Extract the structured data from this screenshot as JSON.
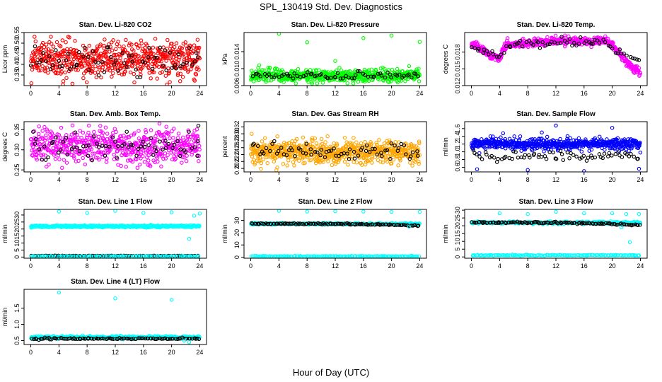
{
  "figure": {
    "title": "SPL_130419  Std. Dev. Diagnostics",
    "xlabel": "Hour of Day (UTC)"
  },
  "chart_data": [
    {
      "type": "scatter",
      "title": "Stan. Dev. Li-820 CO2",
      "xlabel": "",
      "ylabel": "Licor ppm",
      "xlim": [
        -0.96,
        24.96
      ],
      "ylim": [
        0.3,
        0.55
      ],
      "xticks": [
        0,
        4,
        8,
        12,
        16,
        20,
        24
      ],
      "yticks": [
        0.35,
        0.4,
        0.45,
        0.5,
        0.55
      ],
      "ytick_labels": [
        "0.35",
        "0.40",
        "0.45",
        "0.50",
        "0.55"
      ],
      "series": [
        {
          "color": "#ff0000",
          "kind": "noise",
          "n": 600,
          "x_range": [
            0,
            24
          ],
          "y_center": 0.425,
          "y_spread": 0.045,
          "y_min": 0.305,
          "y_max": 0.53
        },
        {
          "color": "#000000",
          "kind": "noise",
          "n": 70,
          "x_range": [
            0,
            24
          ],
          "y_center": 0.42,
          "y_spread": 0.04,
          "y_min": 0.34,
          "y_max": 0.5
        }
      ]
    },
    {
      "type": "scatter",
      "title": "Stan. Dev. Li-820 Pressure",
      "xlabel": "",
      "ylabel": "kPa",
      "xlim": [
        -0.96,
        24.96
      ],
      "ylim": [
        0.006,
        0.0185
      ],
      "xticks": [
        0,
        4,
        8,
        12,
        16,
        20,
        24
      ],
      "yticks": [
        0.006,
        0.01,
        0.014
      ],
      "ytick_labels": [
        "0.006",
        "0.010",
        "0.014"
      ],
      "series": [
        {
          "color": "#00ff00",
          "kind": "noise",
          "n": 600,
          "x_range": [
            0,
            24
          ],
          "y_center": 0.0083,
          "y_spread": 0.0007,
          "y_min": 0.0065,
          "y_max": 0.0102
        },
        {
          "color": "#000000",
          "kind": "noise",
          "n": 70,
          "x_range": [
            0,
            24
          ],
          "y_center": 0.0084,
          "y_spread": 0.0005,
          "y_min": 0.0072,
          "y_max": 0.0095
        },
        {
          "color": "#00ff00",
          "kind": "points",
          "x": [
            4,
            8,
            12,
            16,
            20,
            24,
            1.2,
            22.5
          ],
          "y": [
            0.0182,
            0.0162,
            0.0118,
            0.0172,
            0.0178,
            0.0163,
            0.0108,
            0.0106
          ]
        }
      ]
    },
    {
      "type": "scatter",
      "title": "Stan. Dev. Li-820 Temp.",
      "xlabel": "",
      "ylabel": "degrees C",
      "xlim": [
        -0.96,
        24.96
      ],
      "ylim": [
        0.012,
        0.0215
      ],
      "xticks": [
        0,
        4,
        8,
        12,
        16,
        20,
        24
      ],
      "yticks": [
        0.012,
        0.015,
        0.018
      ],
      "ytick_labels": [
        "0.012",
        "0.015",
        "0.018"
      ],
      "series": [
        {
          "color": "#ff00ff",
          "kind": "trend",
          "n": 600,
          "x_range": [
            0,
            24
          ],
          "y_spread": 0.00035,
          "knots_x": [
            0,
            1,
            2,
            3,
            4,
            4.5,
            5,
            8,
            12,
            16,
            19,
            20,
            21,
            22,
            23,
            24
          ],
          "knots_y": [
            0.0193,
            0.0188,
            0.018,
            0.0173,
            0.0167,
            0.0185,
            0.0192,
            0.0196,
            0.02,
            0.0199,
            0.0201,
            0.0193,
            0.0178,
            0.0162,
            0.015,
            0.0145
          ]
        },
        {
          "color": "#000000",
          "kind": "trend",
          "n": 70,
          "x_range": [
            0,
            24
          ],
          "y_spread": 0.0004,
          "knots_x": [
            0,
            4,
            5,
            12,
            19,
            21,
            24
          ],
          "knots_y": [
            0.019,
            0.017,
            0.0192,
            0.02,
            0.0198,
            0.0178,
            0.0165
          ]
        }
      ]
    },
    {
      "type": "scatter",
      "title": "Stan. Dev. Amb. Box Temp.",
      "xlabel": "",
      "ylabel": "degrees C",
      "xlim": [
        -0.96,
        24.96
      ],
      "ylim": [
        0.245,
        0.37
      ],
      "xticks": [
        0,
        4,
        8,
        12,
        16,
        20,
        24
      ],
      "yticks": [
        0.25,
        0.3,
        0.35
      ],
      "ytick_labels": [
        "0.25",
        "0.30",
        "0.35"
      ],
      "series": [
        {
          "color": "#ff00ff",
          "kind": "noise",
          "n": 560,
          "x_range": [
            0,
            24
          ],
          "y_center": 0.31,
          "y_spread": 0.022,
          "y_min": 0.255,
          "y_max": 0.365
        },
        {
          "color": "#000000",
          "kind": "noise",
          "n": 70,
          "x_range": [
            0,
            24
          ],
          "y_center": 0.305,
          "y_spread": 0.017,
          "y_min": 0.27,
          "y_max": 0.345
        },
        {
          "color": "#000000",
          "kind": "points",
          "x": [
            23.8
          ],
          "y": [
            0.36
          ]
        }
      ]
    },
    {
      "type": "scatter",
      "title": "Stan. Dev. Gas Stream RH",
      "xlabel": "",
      "ylabel": "percent",
      "xlim": [
        -0.96,
        24.96
      ],
      "ylim": [
        0.19,
        0.335
      ],
      "xticks": [
        0,
        4,
        8,
        12,
        16,
        20,
        24
      ],
      "yticks": [
        0.2,
        0.22,
        0.24,
        0.26,
        0.28,
        0.3,
        0.32
      ],
      "ytick_labels": [
        "0.20",
        "0.22",
        "0.24",
        "0.26",
        "0.28",
        "0.30",
        "0.32"
      ],
      "series": [
        {
          "color": "#ffa500",
          "kind": "noise",
          "n": 650,
          "x_range": [
            0,
            24
          ],
          "y_center": 0.248,
          "y_spread": 0.017,
          "y_min": 0.195,
          "y_max": 0.33
        },
        {
          "color": "#000000",
          "kind": "noise",
          "n": 70,
          "x_range": [
            0,
            24
          ],
          "y_center": 0.247,
          "y_spread": 0.013,
          "y_min": 0.215,
          "y_max": 0.3
        }
      ]
    },
    {
      "type": "scatter",
      "title": "Stan. Dev. Sample Flow",
      "xlabel": "",
      "ylabel": "ml/min",
      "xlim": [
        -0.96,
        24.96
      ],
      "ylim": [
        0.48,
        1.78
      ],
      "xticks": [
        0,
        4,
        8,
        12,
        16,
        20,
        24
      ],
      "yticks": [
        0.6,
        0.8,
        1.0,
        1.2,
        1.4,
        1.6
      ],
      "ytick_labels": [
        "0.6",
        "0.8",
        "1.0",
        "1.2",
        "1.4",
        "1.6"
      ],
      "series": [
        {
          "color": "#0000ff",
          "kind": "noise",
          "n": 600,
          "x_range": [
            0,
            24
          ],
          "y_center": 1.2,
          "y_spread": 0.07,
          "y_min": 0.95,
          "y_max": 1.6
        },
        {
          "color": "#000000",
          "kind": "noise",
          "n": 70,
          "x_range": [
            0,
            24
          ],
          "y_center": 0.88,
          "y_spread": 0.07,
          "y_min": 0.65,
          "y_max": 1.05
        },
        {
          "color": "#0000ff",
          "kind": "points",
          "x": [
            0.8,
            8,
            16,
            23.8,
            12,
            20,
            4.5,
            10
          ],
          "y": [
            0.55,
            0.53,
            0.5,
            0.56,
            1.68,
            1.62,
            1.48,
            1.5
          ]
        }
      ]
    },
    {
      "type": "scatter",
      "title": "Stan. Dev. Line 1 Flow",
      "xlabel": "",
      "ylabel": "ml/min",
      "xlim": [
        -0.96,
        24.96
      ],
      "ylim": [
        -0.8,
        34
      ],
      "xticks": [
        0,
        4,
        8,
        12,
        16,
        20,
        24
      ],
      "yticks": [
        0,
        5,
        10,
        15,
        20,
        25,
        30
      ],
      "ytick_labels": [
        "0",
        "5",
        "10",
        "15",
        "20",
        "25",
        "30"
      ],
      "series": [
        {
          "color": "#00ffff",
          "kind": "noise",
          "n": 420,
          "x_range": [
            0,
            24
          ],
          "y_center": 21.9,
          "y_spread": 0.35,
          "y_min": 20.8,
          "y_max": 23
        },
        {
          "color": "#000000",
          "kind": "noise",
          "n": 90,
          "x_range": [
            0,
            24
          ],
          "y_center": 0.9,
          "y_spread": 0.08,
          "y_min": 0.6,
          "y_max": 1.2
        },
        {
          "color": "#00ffff",
          "kind": "noise",
          "n": 90,
          "x_range": [
            0,
            24
          ],
          "y_center": 0.6,
          "y_spread": 0.1,
          "y_min": 0.3,
          "y_max": 0.9
        },
        {
          "color": "#00ffff",
          "kind": "points",
          "x": [
            4,
            8,
            12,
            16,
            20,
            24,
            22.5,
            23.2
          ],
          "y": [
            32.5,
            31.5,
            33,
            31.5,
            32,
            31,
            13,
            29.5
          ]
        }
      ]
    },
    {
      "type": "scatter",
      "title": "Stan. Dev. Line 2 Flow",
      "xlabel": "",
      "ylabel": "ml/min",
      "xlim": [
        -0.96,
        24.96
      ],
      "ylim": [
        -0.8,
        39
      ],
      "xticks": [
        0,
        4,
        8,
        12,
        16,
        20,
        24
      ],
      "yticks": [
        0,
        10,
        20,
        30
      ],
      "ytick_labels": [
        "0",
        "10",
        "20",
        "30"
      ],
      "series": [
        {
          "color": "#00ffff",
          "kind": "noise",
          "n": 300,
          "x_range": [
            0,
            24
          ],
          "y_center": 27.2,
          "y_spread": 0.35,
          "y_min": 26,
          "y_max": 28.2
        },
        {
          "color": "#000000",
          "kind": "trend",
          "n": 110,
          "x_range": [
            0,
            24
          ],
          "y_spread": 0.25,
          "knots_x": [
            0,
            12,
            20,
            24
          ],
          "knots_y": [
            27.4,
            27.2,
            26.4,
            25.8
          ]
        },
        {
          "color": "#00ffff",
          "kind": "noise",
          "n": 120,
          "x_range": [
            0,
            24
          ],
          "y_center": 0.8,
          "y_spread": 0.15,
          "y_min": 0.3,
          "y_max": 1.3
        },
        {
          "color": "#00ffff",
          "kind": "points",
          "x": [
            4,
            8,
            12,
            16,
            20,
            24,
            22.5
          ],
          "y": [
            37.8,
            37.2,
            37.5,
            37.2,
            37,
            37,
            25
          ]
        }
      ]
    },
    {
      "type": "scatter",
      "title": "Stan. Dev. Line 3 Flow",
      "xlabel": "",
      "ylabel": "ml/min",
      "xlim": [
        -0.96,
        24.96
      ],
      "ylim": [
        -0.8,
        30.5
      ],
      "xticks": [
        0,
        4,
        8,
        12,
        16,
        20,
        24
      ],
      "yticks": [
        0,
        5,
        10,
        15,
        20,
        25,
        30
      ],
      "ytick_labels": [
        "0",
        "5",
        "10",
        "15",
        "20",
        "25",
        "30"
      ],
      "series": [
        {
          "color": "#00ffff",
          "kind": "noise",
          "n": 300,
          "x_range": [
            0,
            24
          ],
          "y_center": 22.0,
          "y_spread": 0.35,
          "y_min": 20.8,
          "y_max": 23
        },
        {
          "color": "#000000",
          "kind": "trend",
          "n": 110,
          "x_range": [
            0,
            24
          ],
          "y_spread": 0.25,
          "knots_x": [
            0,
            12,
            20,
            24
          ],
          "knots_y": [
            22.2,
            22.0,
            21.2,
            20.5
          ]
        },
        {
          "color": "#00ffff",
          "kind": "noise",
          "n": 120,
          "x_range": [
            0,
            24
          ],
          "y_center": 1.1,
          "y_spread": 0.15,
          "y_min": 0.5,
          "y_max": 1.6
        },
        {
          "color": "#00ffff",
          "kind": "points",
          "x": [
            4,
            8,
            12,
            16,
            20,
            22,
            23.8,
            22.5,
            21.3
          ],
          "y": [
            28,
            27.5,
            29,
            28,
            28,
            27.5,
            27.5,
            9.5,
            19
          ]
        }
      ]
    },
    {
      "type": "scatter",
      "title": "Stan. Dev. Line 4 (LT) Flow",
      "xlabel": "",
      "ylabel": "ml/min",
      "xlim": [
        -0.96,
        24.96
      ],
      "ylim": [
        0.38,
        2.08
      ],
      "xticks": [
        0,
        4,
        8,
        12,
        16,
        20,
        24
      ],
      "yticks": [
        0.5,
        1.0,
        1.5
      ],
      "ytick_labels": [
        "0.5",
        "1.0",
        "1.5"
      ],
      "series": [
        {
          "color": "#00ffff",
          "kind": "noise",
          "n": 420,
          "x_range": [
            0,
            24
          ],
          "y_center": 0.6,
          "y_spread": 0.02,
          "y_min": 0.5,
          "y_max": 0.7
        },
        {
          "color": "#000000",
          "kind": "noise",
          "n": 100,
          "x_range": [
            0,
            24
          ],
          "y_center": 0.56,
          "y_spread": 0.012,
          "y_min": 0.52,
          "y_max": 0.6
        },
        {
          "color": "#00ffff",
          "kind": "points",
          "x": [
            4,
            12,
            20,
            21.8,
            22.5
          ],
          "y": [
            1.98,
            1.8,
            1.76,
            0.5,
            0.45
          ]
        }
      ]
    }
  ]
}
